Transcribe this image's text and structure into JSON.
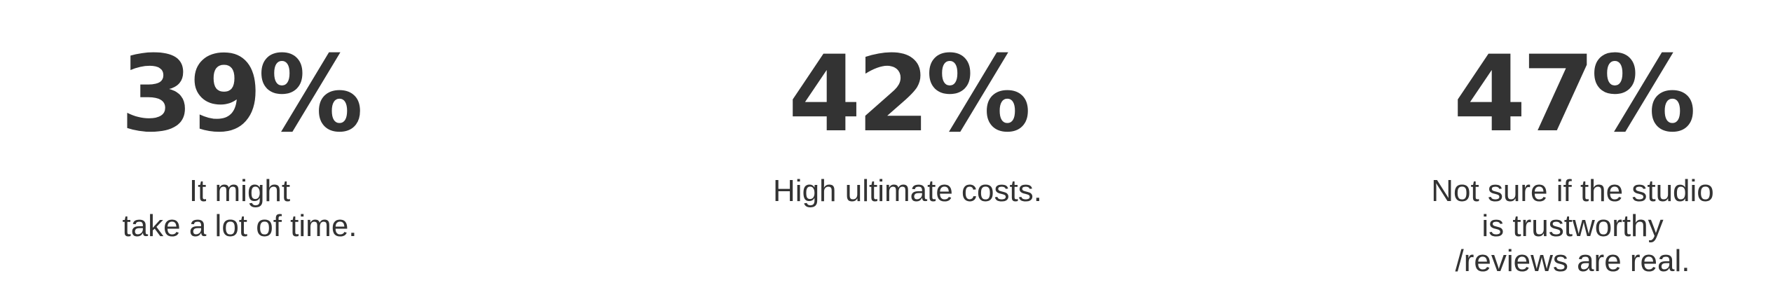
{
  "stats": [
    {
      "value": "39%",
      "caption_lines": [
        "It might",
        "take a lot of time."
      ]
    },
    {
      "value": "42%",
      "caption_lines": [
        "High ultimate costs."
      ]
    },
    {
      "value": "47%",
      "caption_lines": [
        "Not sure if the studio",
        "is trustworthy",
        "/reviews are real."
      ]
    }
  ],
  "colors": {
    "text": "#333333",
    "background": "#ffffff"
  }
}
